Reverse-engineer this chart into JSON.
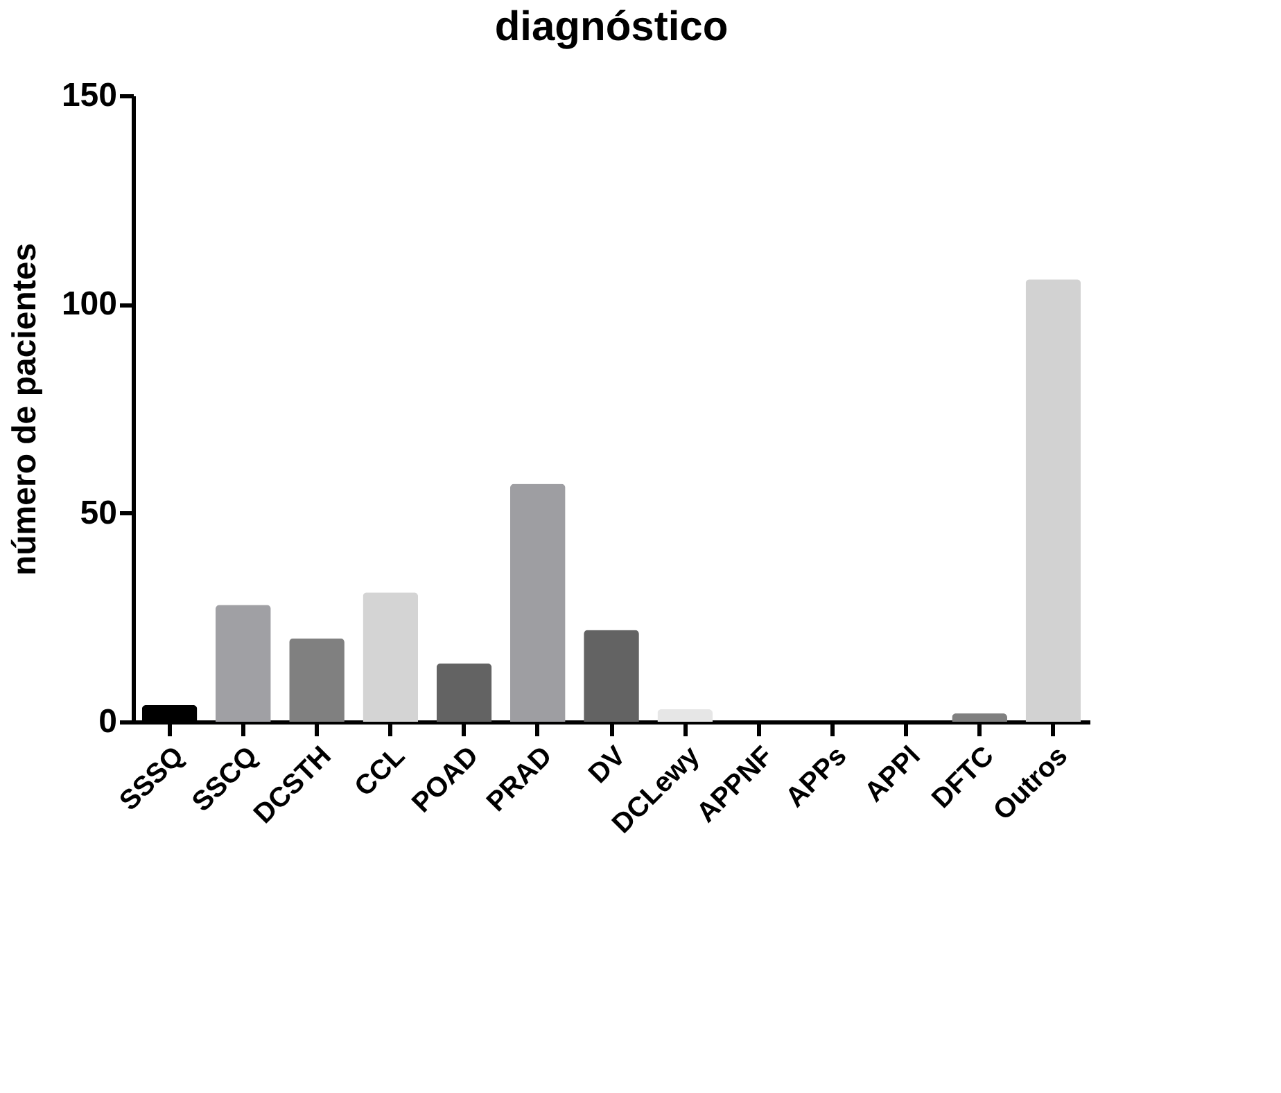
{
  "chart_data": {
    "type": "bar",
    "title": "diagnóstico",
    "ylabel": "número de pacientes",
    "categories": [
      "SSSQ",
      "SSCQ",
      "DCSTH",
      "CCL",
      "POAD",
      "PRAD",
      "DV",
      "DCLewy",
      "APPNF",
      "APPs",
      "APPl",
      "DFTC",
      "Outros"
    ],
    "values": [
      4,
      28,
      20,
      31,
      14,
      57,
      22,
      3,
      0,
      0,
      0,
      2,
      106
    ],
    "colors": [
      "#000000",
      "#a0a0a4",
      "#808080",
      "#d4d4d4",
      "#636363",
      "#9e9ea2",
      "#636363",
      "#e6e6e6",
      "#999999",
      "#999999",
      "#999999",
      "#808080",
      "#d2d2d2"
    ],
    "ylim": [
      0,
      150
    ],
    "yticks": [
      0,
      50,
      100,
      150
    ],
    "grid": false
  }
}
